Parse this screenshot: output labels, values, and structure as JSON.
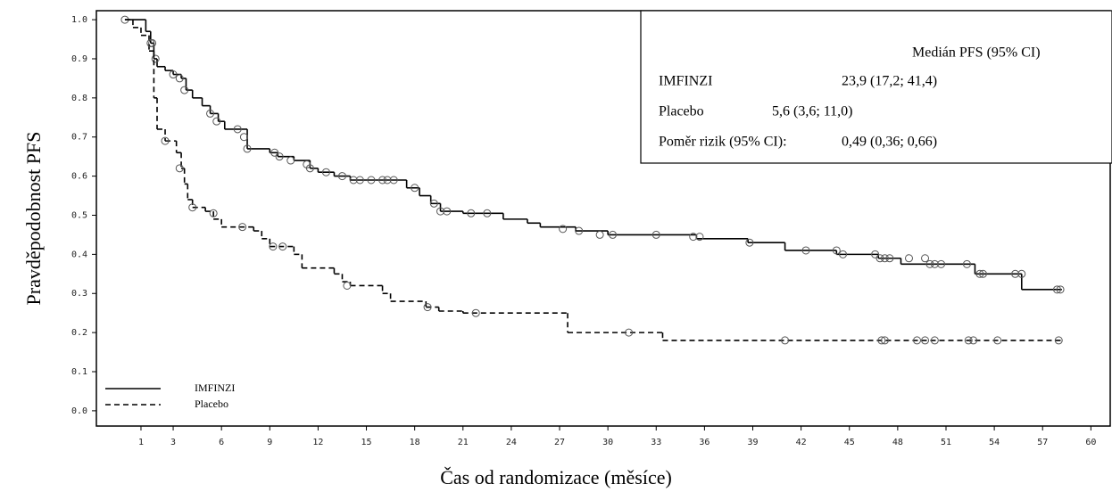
{
  "chart_data": {
    "type": "step",
    "x_label": "Čas od randomizace (měsíce)",
    "y_label": "Pravděpodobnost PFS",
    "xlim": [
      -1.77,
      61.2
    ],
    "ylim": [
      -0.039,
      1.023
    ],
    "xticks": [
      1,
      3,
      6,
      9,
      12,
      15,
      18,
      21,
      24,
      27,
      30,
      33,
      36,
      39,
      42,
      45,
      48,
      51,
      54,
      57,
      60
    ],
    "yticks": [
      {
        "value": 1.0,
        "label": "1.0"
      },
      0.9,
      0.8,
      0.7,
      0.6,
      0.5,
      0.4,
      0.3,
      0.2,
      0.1,
      {
        "value": 0.0,
        "label": "0.0"
      }
    ],
    "legend": "lower left",
    "series": [
      {
        "name": "IMFINZI",
        "color": "#000000",
        "style": "solid",
        "x": [
          0,
          1.3,
          1.6,
          1.8,
          2.0,
          2.5,
          3.0,
          3.5,
          3.8,
          4.2,
          4.8,
          5.3,
          5.8,
          6.2,
          7.2,
          7.6,
          9.0,
          9.5,
          10.5,
          11.5,
          12.0,
          13.0,
          14.0,
          17.5,
          18.3,
          19.0,
          19.6,
          21.0,
          23.5,
          25.0,
          25.8,
          28.0,
          30.0,
          35.5,
          38.7,
          41.0,
          44.2,
          46.8,
          48.2,
          52.8,
          55.7,
          58.2
        ],
        "values": [
          1.0,
          0.97,
          0.94,
          0.9,
          0.88,
          0.87,
          0.86,
          0.85,
          0.82,
          0.8,
          0.78,
          0.76,
          0.74,
          0.72,
          0.72,
          0.67,
          0.66,
          0.65,
          0.64,
          0.62,
          0.61,
          0.6,
          0.59,
          0.57,
          0.55,
          0.53,
          0.51,
          0.505,
          0.49,
          0.48,
          0.47,
          0.46,
          0.45,
          0.44,
          0.43,
          0.41,
          0.4,
          0.39,
          0.375,
          0.35,
          0.31,
          0.31
        ],
        "censored_x": [
          0,
          1.7,
          1.9,
          3.0,
          3.4,
          3.7,
          5.3,
          5.7,
          7.0,
          7.4,
          7.6,
          9.3,
          9.6,
          10.3,
          11.3,
          11.5,
          12.5,
          13.5,
          14.2,
          14.6,
          15.3,
          16.0,
          16.3,
          16.7,
          18.0,
          19.2,
          19.6,
          20.0,
          21.5,
          22.5,
          27.2,
          28.2,
          29.5,
          30.3,
          33.0,
          35.3,
          35.7,
          38.8,
          42.3,
          44.2,
          44.6,
          46.6,
          46.9,
          47.2,
          47.5,
          48.7,
          49.7,
          50.0,
          50.3,
          50.7,
          52.3,
          53.1,
          53.3,
          55.3,
          55.7,
          57.9,
          58.1
        ],
        "censored_values": [
          1.0,
          0.94,
          0.9,
          0.86,
          0.85,
          0.82,
          0.76,
          0.74,
          0.72,
          0.7,
          0.67,
          0.66,
          0.65,
          0.64,
          0.63,
          0.62,
          0.61,
          0.6,
          0.59,
          0.59,
          0.59,
          0.59,
          0.59,
          0.59,
          0.57,
          0.53,
          0.51,
          0.51,
          0.505,
          0.505,
          0.465,
          0.46,
          0.45,
          0.45,
          0.45,
          0.445,
          0.445,
          0.43,
          0.41,
          0.41,
          0.4,
          0.4,
          0.39,
          0.39,
          0.39,
          0.39,
          0.39,
          0.375,
          0.375,
          0.375,
          0.375,
          0.35,
          0.35,
          0.35,
          0.35,
          0.31,
          0.31
        ]
      },
      {
        "name": "Placebo",
        "color": "#000000",
        "style": "dashed",
        "x": [
          0,
          0.5,
          1.0,
          1.5,
          1.8,
          2.0,
          2.5,
          3.2,
          3.5,
          3.7,
          3.9,
          4.2,
          5.0,
          5.5,
          6.0,
          8.0,
          8.5,
          9.0,
          10.5,
          11.0,
          13.0,
          13.5,
          14.0,
          16.0,
          16.5,
          18.7,
          19.5,
          21.0,
          27.5,
          33.4,
          58.2
        ],
        "values": [
          1.0,
          0.98,
          0.96,
          0.92,
          0.8,
          0.72,
          0.69,
          0.66,
          0.62,
          0.58,
          0.54,
          0.52,
          0.51,
          0.49,
          0.47,
          0.46,
          0.44,
          0.42,
          0.4,
          0.365,
          0.35,
          0.33,
          0.32,
          0.3,
          0.28,
          0.265,
          0.255,
          0.25,
          0.2,
          0.18,
          0.18
        ],
        "censored_x": [
          1.6,
          2.5,
          3.4,
          4.2,
          5.5,
          7.3,
          9.2,
          9.8,
          13.8,
          18.8,
          21.8,
          31.3,
          41.0,
          47.0,
          47.2,
          49.2,
          49.7,
          50.3,
          52.4,
          52.7,
          54.2,
          58.0
        ],
        "censored_values": [
          0.94,
          0.69,
          0.62,
          0.52,
          0.505,
          0.47,
          0.42,
          0.42,
          0.32,
          0.265,
          0.25,
          0.2,
          0.18,
          0.18,
          0.18,
          0.18,
          0.18,
          0.18,
          0.18,
          0.18,
          0.18,
          0.18
        ]
      }
    ],
    "annotation": {
      "header": "Medián PFS (95% CI)",
      "rows": [
        [
          "IMFINZI",
          "23,9 (17,2; 41,4)"
        ],
        [
          "Placebo",
          "5,6 (3,6; 11,0)"
        ],
        [
          "Poměr rizik (95% CI):",
          "0,49 (0,36; 0,66)"
        ]
      ]
    }
  }
}
